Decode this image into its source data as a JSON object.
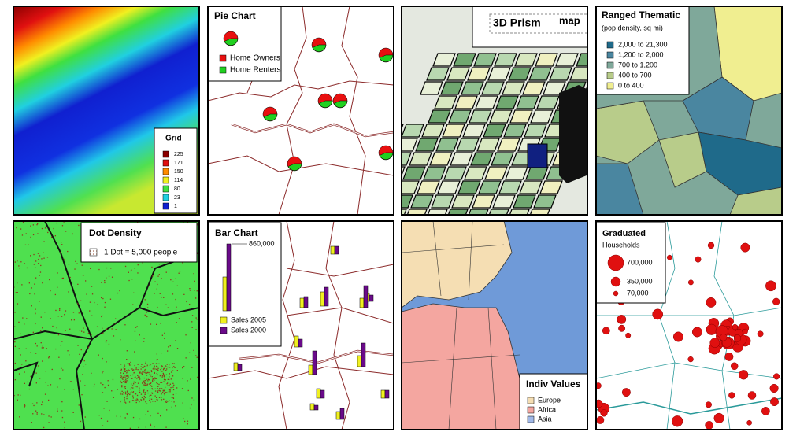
{
  "panels": [
    {
      "title": "Grid",
      "legend": [
        "225",
        "171",
        "150",
        "114",
        "80",
        "23",
        "1"
      ]
    },
    {
      "title": "Pie Chart",
      "legend": [
        "Home Owners",
        "Home Renters"
      ]
    },
    {
      "title": "3D Prism",
      "subtitle": "map"
    },
    {
      "title": "Ranged Thematic",
      "subtitle": "(pop density, sq mi)",
      "legend": [
        "2,000 to 21,300",
        "1,200 to 2,000",
        "700 to 1,200",
        "400 to 700",
        "0 to 400"
      ]
    },
    {
      "title": "Dot Density",
      "legend": [
        "1 Dot = 5,000 people"
      ]
    },
    {
      "title": "Bar Chart",
      "scale_label": "860,000",
      "legend": [
        "Sales 2005",
        "Sales 2000"
      ]
    },
    {
      "title": "Indiv Values",
      "legend": [
        "Europe",
        "Africa",
        "Asia"
      ]
    },
    {
      "title": "Graduated",
      "subtitle": "Households",
      "legend": [
        "700,000",
        "350,000",
        "70,000"
      ]
    }
  ]
}
